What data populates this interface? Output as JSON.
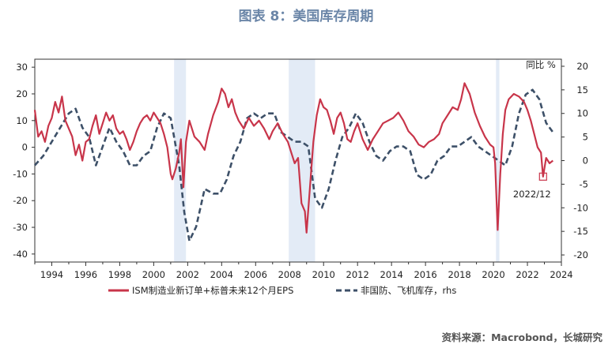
{
  "title": "图表 8：美国库存周期",
  "source": "资料来源：Macrobond，长城研究",
  "chart_data": {
    "type": "line",
    "title": "图表 8：美国库存周期",
    "rhs_unit_label": "同比 %",
    "annotation": "2022/12",
    "x_ticks": [
      "1994",
      "1996",
      "1998",
      "2000",
      "2002",
      "2004",
      "2006",
      "2008",
      "2010",
      "2012",
      "2014",
      "2016",
      "2018",
      "2020",
      "2022",
      "2024"
    ],
    "xlim": [
      1993.0,
      2024.0
    ],
    "left_axis": {
      "ylim": [
        -43,
        33
      ],
      "ticks": [
        30,
        20,
        10,
        0,
        -10,
        -20,
        -30,
        -40
      ]
    },
    "right_axis": {
      "ylim": [
        -21.5,
        21.5
      ],
      "ticks": [
        20,
        15,
        10,
        5,
        0,
        -5,
        -10,
        -15,
        -20
      ]
    },
    "recessions": [
      [
        2001.2,
        2001.9
      ],
      [
        2007.95,
        2009.5
      ],
      [
        2020.15,
        2020.35
      ]
    ],
    "grid": false,
    "legend_position": "bottom",
    "series": [
      {
        "name": "ISM制造业新订单+标普未来12个月EPS",
        "axis": "left",
        "color": "#c8354a",
        "style": "solid",
        "points": [
          [
            1993.0,
            14
          ],
          [
            1993.2,
            4
          ],
          [
            1993.4,
            6
          ],
          [
            1993.6,
            2
          ],
          [
            1993.8,
            8
          ],
          [
            1994.0,
            11
          ],
          [
            1994.2,
            17
          ],
          [
            1994.4,
            13
          ],
          [
            1994.6,
            19
          ],
          [
            1994.8,
            10
          ],
          [
            1995.0,
            7
          ],
          [
            1995.2,
            4
          ],
          [
            1995.4,
            -3
          ],
          [
            1995.6,
            1
          ],
          [
            1995.8,
            -5
          ],
          [
            1996.0,
            2
          ],
          [
            1996.2,
            3
          ],
          [
            1996.4,
            8
          ],
          [
            1996.6,
            12
          ],
          [
            1996.8,
            5
          ],
          [
            1997.0,
            9
          ],
          [
            1997.2,
            13
          ],
          [
            1997.4,
            10
          ],
          [
            1997.6,
            12
          ],
          [
            1997.8,
            7
          ],
          [
            1998.0,
            5
          ],
          [
            1998.2,
            6
          ],
          [
            1998.4,
            3
          ],
          [
            1998.6,
            -1
          ],
          [
            1998.8,
            2
          ],
          [
            1999.0,
            6
          ],
          [
            1999.2,
            9
          ],
          [
            1999.4,
            11
          ],
          [
            1999.6,
            12
          ],
          [
            1999.8,
            10
          ],
          [
            2000.0,
            13
          ],
          [
            2000.2,
            11
          ],
          [
            2000.4,
            9
          ],
          [
            2000.6,
            5
          ],
          [
            2000.8,
            0
          ],
          [
            2001.0,
            -10
          ],
          [
            2001.1,
            -12
          ],
          [
            2001.3,
            -8
          ],
          [
            2001.5,
            -2
          ],
          [
            2001.6,
            3
          ],
          [
            2001.75,
            -15
          ],
          [
            2001.9,
            2
          ],
          [
            2002.1,
            10
          ],
          [
            2002.4,
            4
          ],
          [
            2002.7,
            2
          ],
          [
            2003.0,
            -1
          ],
          [
            2003.2,
            5
          ],
          [
            2003.5,
            12
          ],
          [
            2003.8,
            17
          ],
          [
            2004.0,
            22
          ],
          [
            2004.2,
            20
          ],
          [
            2004.4,
            15
          ],
          [
            2004.6,
            18
          ],
          [
            2004.8,
            13
          ],
          [
            2005.0,
            10
          ],
          [
            2005.3,
            7
          ],
          [
            2005.6,
            11
          ],
          [
            2005.9,
            8
          ],
          [
            2006.2,
            10
          ],
          [
            2006.5,
            7
          ],
          [
            2006.8,
            3
          ],
          [
            2007.0,
            6
          ],
          [
            2007.3,
            9
          ],
          [
            2007.6,
            5
          ],
          [
            2007.9,
            2
          ],
          [
            2008.1,
            -2
          ],
          [
            2008.3,
            -6
          ],
          [
            2008.5,
            -4
          ],
          [
            2008.7,
            -21
          ],
          [
            2008.9,
            -24
          ],
          [
            2009.0,
            -32
          ],
          [
            2009.2,
            -15
          ],
          [
            2009.4,
            2
          ],
          [
            2009.6,
            12
          ],
          [
            2009.8,
            18
          ],
          [
            2010.0,
            15
          ],
          [
            2010.2,
            14
          ],
          [
            2010.4,
            10
          ],
          [
            2010.6,
            5
          ],
          [
            2010.8,
            11
          ],
          [
            2011.0,
            13
          ],
          [
            2011.2,
            9
          ],
          [
            2011.4,
            3
          ],
          [
            2011.6,
            2
          ],
          [
            2011.8,
            6
          ],
          [
            2012.0,
            9
          ],
          [
            2012.3,
            3
          ],
          [
            2012.6,
            -1
          ],
          [
            2012.9,
            3
          ],
          [
            2013.2,
            6
          ],
          [
            2013.5,
            9
          ],
          [
            2013.8,
            10
          ],
          [
            2014.1,
            11
          ],
          [
            2014.4,
            13
          ],
          [
            2014.7,
            10
          ],
          [
            2015.0,
            6
          ],
          [
            2015.3,
            4
          ],
          [
            2015.6,
            1
          ],
          [
            2015.9,
            0
          ],
          [
            2016.2,
            2
          ],
          [
            2016.5,
            3
          ],
          [
            2016.8,
            5
          ],
          [
            2017.0,
            9
          ],
          [
            2017.3,
            12
          ],
          [
            2017.6,
            15
          ],
          [
            2017.9,
            14
          ],
          [
            2018.1,
            18
          ],
          [
            2018.3,
            24
          ],
          [
            2018.6,
            20
          ],
          [
            2018.9,
            13
          ],
          [
            2019.2,
            8
          ],
          [
            2019.5,
            4
          ],
          [
            2019.8,
            1
          ],
          [
            2020.0,
            0
          ],
          [
            2020.1,
            -6
          ],
          [
            2020.25,
            -31
          ],
          [
            2020.4,
            -10
          ],
          [
            2020.55,
            5
          ],
          [
            2020.7,
            14
          ],
          [
            2020.9,
            18
          ],
          [
            2021.2,
            20
          ],
          [
            2021.5,
            19
          ],
          [
            2021.8,
            17
          ],
          [
            2022.0,
            14
          ],
          [
            2022.2,
            10
          ],
          [
            2022.4,
            5
          ],
          [
            2022.6,
            0
          ],
          [
            2022.8,
            -2
          ],
          [
            2022.92,
            -11
          ],
          [
            2023.1,
            -4
          ],
          [
            2023.3,
            -6
          ],
          [
            2023.5,
            -5
          ]
        ]
      },
      {
        "name": "非国防、飞机库存，rhs",
        "axis": "right",
        "color": "#3d5068",
        "style": "dashed",
        "points": [
          [
            1993.0,
            -1
          ],
          [
            1993.5,
            1
          ],
          [
            1994.0,
            4
          ],
          [
            1994.5,
            7
          ],
          [
            1995.0,
            10
          ],
          [
            1995.4,
            11
          ],
          [
            1995.8,
            7
          ],
          [
            1996.2,
            5
          ],
          [
            1996.6,
            -1
          ],
          [
            1997.0,
            3
          ],
          [
            1997.4,
            7
          ],
          [
            1997.8,
            4
          ],
          [
            1998.2,
            2
          ],
          [
            1998.6,
            -1
          ],
          [
            1999.0,
            -1
          ],
          [
            1999.4,
            1
          ],
          [
            1999.8,
            2
          ],
          [
            2000.2,
            7
          ],
          [
            2000.6,
            10
          ],
          [
            2001.0,
            9
          ],
          [
            2001.5,
            -1
          ],
          [
            2001.8,
            -11
          ],
          [
            2002.1,
            -17
          ],
          [
            2002.5,
            -14
          ],
          [
            2003.0,
            -6
          ],
          [
            2003.5,
            -7
          ],
          [
            2003.9,
            -7
          ],
          [
            2004.3,
            -4
          ],
          [
            2004.7,
            1
          ],
          [
            2005.1,
            4
          ],
          [
            2005.5,
            9
          ],
          [
            2005.9,
            10
          ],
          [
            2006.3,
            9
          ],
          [
            2006.7,
            10
          ],
          [
            2007.1,
            10
          ],
          [
            2007.5,
            6
          ],
          [
            2007.9,
            5
          ],
          [
            2008.3,
            4
          ],
          [
            2008.7,
            4
          ],
          [
            2009.1,
            3
          ],
          [
            2009.5,
            -8
          ],
          [
            2009.9,
            -10
          ],
          [
            2010.3,
            -6
          ],
          [
            2010.7,
            0
          ],
          [
            2011.1,
            5
          ],
          [
            2011.5,
            7
          ],
          [
            2011.9,
            10
          ],
          [
            2012.3,
            8
          ],
          [
            2012.7,
            4
          ],
          [
            2013.1,
            1
          ],
          [
            2013.5,
            0
          ],
          [
            2013.9,
            2
          ],
          [
            2014.3,
            3
          ],
          [
            2014.7,
            3
          ],
          [
            2015.1,
            2
          ],
          [
            2015.5,
            -3
          ],
          [
            2015.9,
            -4
          ],
          [
            2016.3,
            -3
          ],
          [
            2016.7,
            0
          ],
          [
            2017.1,
            1
          ],
          [
            2017.5,
            3
          ],
          [
            2017.9,
            3
          ],
          [
            2018.3,
            4
          ],
          [
            2018.7,
            5
          ],
          [
            2019.1,
            3
          ],
          [
            2019.5,
            2
          ],
          [
            2019.9,
            1
          ],
          [
            2020.3,
            0
          ],
          [
            2020.7,
            -1
          ],
          [
            2021.1,
            3
          ],
          [
            2021.5,
            10
          ],
          [
            2021.9,
            14
          ],
          [
            2022.3,
            15
          ],
          [
            2022.7,
            13
          ],
          [
            2023.1,
            8
          ],
          [
            2023.5,
            6
          ]
        ]
      }
    ]
  }
}
